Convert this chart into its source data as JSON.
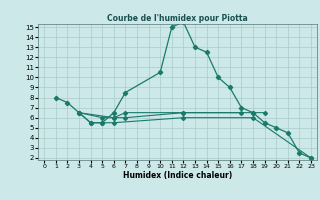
{
  "title": "Courbe de l'humidex pour Piotta",
  "xlabel": "Humidex (Indice chaleur)",
  "bg_color": "#cce8e8",
  "grid_color": "#aacccc",
  "line_color": "#1a7a6a",
  "xlim": [
    -0.5,
    23.5
  ],
  "ylim": [
    2,
    15
  ],
  "xticks": [
    0,
    1,
    2,
    3,
    4,
    5,
    6,
    7,
    8,
    9,
    10,
    11,
    12,
    13,
    14,
    15,
    16,
    17,
    18,
    19,
    20,
    21,
    22,
    23
  ],
  "yticks": [
    2,
    3,
    4,
    5,
    6,
    7,
    8,
    9,
    10,
    11,
    12,
    13,
    14,
    15
  ],
  "line1_x": [
    1,
    2,
    3,
    4,
    5,
    6,
    7,
    10,
    11,
    12,
    13,
    14,
    15,
    16,
    17,
    18,
    19,
    20,
    21,
    22,
    23
  ],
  "line1_y": [
    8.0,
    7.5,
    6.5,
    5.5,
    5.5,
    6.5,
    8.5,
    10.5,
    15.0,
    15.5,
    13.0,
    12.5,
    10.0,
    9.0,
    7.0,
    6.5,
    5.5,
    5.0,
    4.5,
    2.5,
    2.0
  ],
  "line2_x": [
    3,
    5,
    6,
    7,
    12,
    18,
    19
  ],
  "line2_y": [
    6.5,
    6.0,
    6.0,
    6.0,
    6.5,
    6.5,
    6.5
  ],
  "line3_x": [
    3,
    6,
    7,
    12,
    17
  ],
  "line3_y": [
    6.5,
    6.0,
    6.5,
    6.5,
    6.5
  ],
  "line4_x": [
    3,
    4,
    5,
    6,
    12,
    18,
    23
  ],
  "line4_y": [
    6.5,
    5.5,
    5.5,
    5.5,
    6.0,
    6.0,
    2.0
  ]
}
